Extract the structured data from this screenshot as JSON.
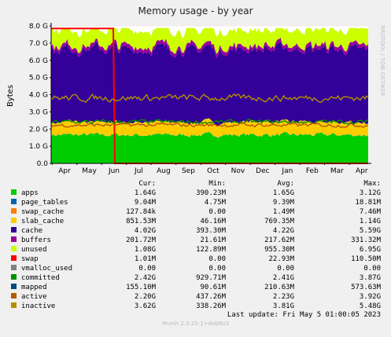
{
  "chart_data": {
    "type": "area",
    "title": "Memory usage - by year",
    "ylabel": "Bytes",
    "ylim": [
      0,
      8.0
    ],
    "y_unit": "G",
    "y_ticks": [
      "0.0",
      "1.0 G",
      "2.0 G",
      "3.0 G",
      "4.0 G",
      "5.0 G",
      "6.0 G",
      "7.0 G",
      "8.0 G"
    ],
    "x_tick_labels": [
      "Apr",
      "May",
      "Jun",
      "Jul",
      "Aug",
      "Sep",
      "Oct",
      "Nov",
      "Dec",
      "Jan",
      "Feb",
      "Mar",
      "Apr"
    ],
    "grid": true,
    "stacked_order": [
      "apps",
      "page_tables",
      "swap_cache",
      "slab_cache",
      "cache",
      "buffers",
      "unused"
    ],
    "line_series": [
      "swap",
      "committed",
      "active",
      "inactive"
    ],
    "columns": [
      "Cur:",
      "Min:",
      "Avg:",
      "Max:"
    ],
    "series": [
      {
        "name": "apps",
        "color": "#00cc00",
        "cur": "1.64G",
        "min": "390.23M",
        "avg": "1.65G",
        "max": "3.12G"
      },
      {
        "name": "page_tables",
        "color": "#0066b3",
        "cur": "9.04M",
        "min": "4.75M",
        "avg": "9.39M",
        "max": "18.81M"
      },
      {
        "name": "swap_cache",
        "color": "#ff8000",
        "cur": "127.84k",
        "min": "0.00",
        "avg": "1.49M",
        "max": "7.46M"
      },
      {
        "name": "slab_cache",
        "color": "#ffcc00",
        "cur": "851.53M",
        "min": "46.16M",
        "avg": "769.35M",
        "max": "1.14G"
      },
      {
        "name": "cache",
        "color": "#330099",
        "cur": "4.02G",
        "min": "393.30M",
        "avg": "4.22G",
        "max": "5.59G"
      },
      {
        "name": "buffers",
        "color": "#990099",
        "cur": "201.72M",
        "min": "21.61M",
        "avg": "217.62M",
        "max": "331.32M"
      },
      {
        "name": "unused",
        "color": "#ccff00",
        "cur": "1.08G",
        "min": "122.89M",
        "avg": "955.30M",
        "max": "6.95G"
      },
      {
        "name": "swap",
        "color": "#ff0000",
        "cur": "1.01M",
        "min": "0.00",
        "avg": "22.93M",
        "max": "110.50M"
      },
      {
        "name": "vmalloc_used",
        "color": "#808080",
        "cur": "0.00",
        "min": "0.00",
        "avg": "0.00",
        "max": "0.00"
      },
      {
        "name": "committed",
        "color": "#008f00",
        "cur": "2.42G",
        "min": "929.71M",
        "avg": "2.41G",
        "max": "3.87G"
      },
      {
        "name": "mapped",
        "color": "#00487d",
        "cur": "155.10M",
        "min": "90.61M",
        "avg": "210.63M",
        "max": "573.63M"
      },
      {
        "name": "active",
        "color": "#b35a00",
        "cur": "2.20G",
        "min": "437.26M",
        "avg": "2.23G",
        "max": "3.92G"
      },
      {
        "name": "inactive",
        "color": "#b38f00",
        "cur": "3.62G",
        "min": "338.26M",
        "avg": "3.81G",
        "max": "5.48G"
      }
    ],
    "last_update": "Last update:  Fri May  5 01:00:05 2023",
    "watermark": "RRDTOOL / TOBI OETIKER",
    "footer": "Munin 2.0.25-1+deb8u3"
  }
}
